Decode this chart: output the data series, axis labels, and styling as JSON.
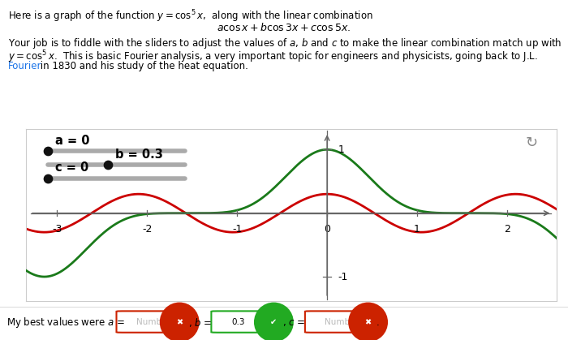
{
  "green_color": "#1a7a1a",
  "red_color": "#cc0000",
  "axis_color": "#666666",
  "slider_color": "#aaaaaa",
  "knob_color": "#111111",
  "bg_color": "#ffffff",
  "box_border_red": "#cc2200",
  "box_border_green": "#22aa22",
  "xmin": -3.35,
  "xmax": 2.55,
  "ymin": -1.38,
  "ymax": 1.32,
  "xticks": [
    -3,
    -2,
    -1,
    0,
    1,
    2
  ],
  "ytick_pos": [
    1
  ],
  "ytick_neg": [
    -1
  ],
  "a_val": 0,
  "b_val": 0.3,
  "c_val": 0,
  "slider_a_label": "a = 0",
  "slider_b_label": "b = 0.3",
  "slider_c_label": "c = 0"
}
